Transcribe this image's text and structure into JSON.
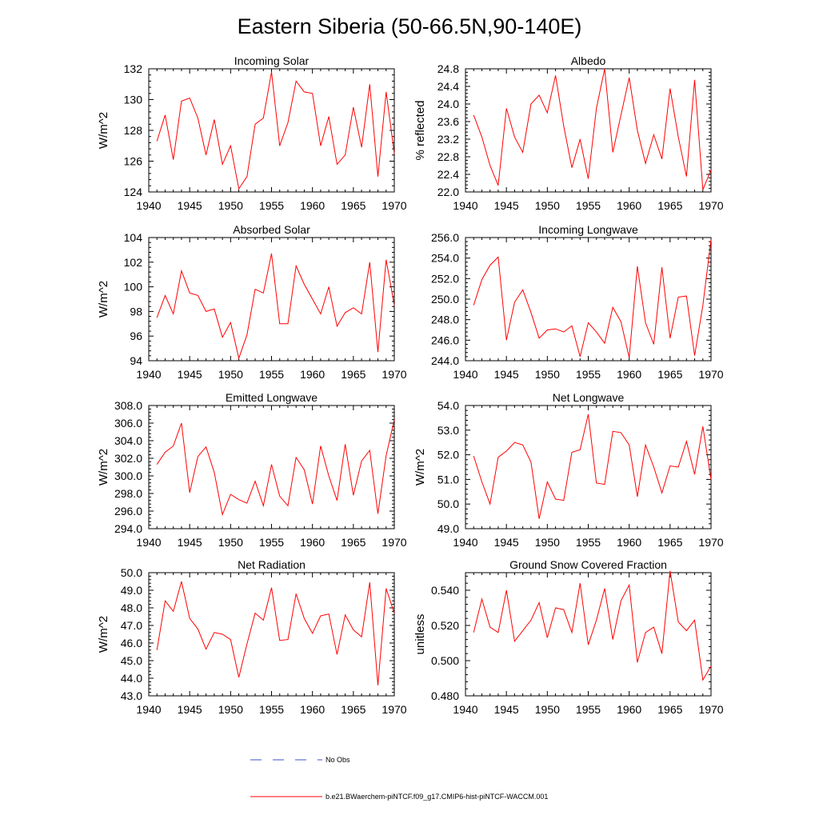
{
  "figure": {
    "title": "Eastern Siberia (50-66.5N,90-140E)"
  },
  "legend": {
    "obs_label": "No Obs",
    "model_label": "b.e21.BWaerchem-piNTCF.f09_g17.CMIP6-hist-piNTCF-WACCM.001",
    "obs_color": "#3a4fd0",
    "model_color": "#ff0000"
  },
  "chart_data": [
    {
      "type": "line",
      "title": "Incoming Solar",
      "ylabel": "W/m^2",
      "xlim": [
        1940,
        1970
      ],
      "ylim": [
        124,
        132
      ],
      "xticks": [
        1940,
        1945,
        1950,
        1955,
        1960,
        1965,
        1970
      ],
      "yticks": [
        124,
        126,
        128,
        130,
        132
      ],
      "ytick_decimals": 0,
      "grid": false,
      "x": [
        1941,
        1942,
        1943,
        1944,
        1945,
        1946,
        1947,
        1948,
        1949,
        1950,
        1951,
        1952,
        1953,
        1954,
        1955,
        1956,
        1957,
        1958,
        1959,
        1960,
        1961,
        1962,
        1963,
        1964,
        1965,
        1966,
        1967,
        1968,
        1969,
        1970
      ],
      "series": [
        {
          "color": "#ff0000",
          "values": [
            127.3,
            129.0,
            126.1,
            129.9,
            130.1,
            128.8,
            126.4,
            128.7,
            125.8,
            127.0,
            124.2,
            125.0,
            128.4,
            128.8,
            131.8,
            127.0,
            128.5,
            131.2,
            130.5,
            130.4,
            127.0,
            128.9,
            125.8,
            126.4,
            129.5,
            126.9,
            131.0,
            125.0,
            130.5,
            126.5
          ]
        }
      ]
    },
    {
      "type": "line",
      "title": "Albedo",
      "ylabel": "% reflected",
      "xlim": [
        1940,
        1970
      ],
      "ylim": [
        22.0,
        24.8
      ],
      "xticks": [
        1940,
        1945,
        1950,
        1955,
        1960,
        1965,
        1970
      ],
      "yticks": [
        22.0,
        22.4,
        22.8,
        23.2,
        23.6,
        24.0,
        24.4,
        24.8
      ],
      "ytick_decimals": 1,
      "grid": false,
      "x": [
        1941,
        1942,
        1943,
        1944,
        1945,
        1946,
        1947,
        1948,
        1949,
        1950,
        1951,
        1952,
        1953,
        1954,
        1955,
        1956,
        1957,
        1958,
        1959,
        1960,
        1961,
        1962,
        1963,
        1964,
        1965,
        1966,
        1967,
        1968,
        1969,
        1970
      ],
      "series": [
        {
          "color": "#ff0000",
          "values": [
            23.75,
            23.25,
            22.6,
            22.15,
            23.9,
            23.25,
            22.9,
            24.0,
            24.2,
            23.8,
            24.65,
            23.5,
            22.55,
            23.2,
            22.3,
            23.9,
            24.8,
            22.9,
            23.75,
            24.6,
            23.4,
            22.65,
            23.3,
            22.75,
            24.35,
            23.25,
            22.35,
            24.55,
            22.05,
            22.5
          ]
        }
      ]
    },
    {
      "type": "line",
      "title": "Absorbed Solar",
      "ylabel": "W/m^2",
      "xlim": [
        1940,
        1970
      ],
      "ylim": [
        94,
        104
      ],
      "xticks": [
        1940,
        1945,
        1950,
        1955,
        1960,
        1965,
        1970
      ],
      "yticks": [
        94,
        96,
        98,
        100,
        102,
        104
      ],
      "ytick_decimals": 0,
      "grid": false,
      "x": [
        1941,
        1942,
        1943,
        1944,
        1945,
        1946,
        1947,
        1948,
        1949,
        1950,
        1951,
        1952,
        1953,
        1954,
        1955,
        1956,
        1957,
        1958,
        1959,
        1960,
        1961,
        1962,
        1963,
        1964,
        1965,
        1966,
        1967,
        1968,
        1969,
        1970
      ],
      "series": [
        {
          "color": "#ff0000",
          "values": [
            97.5,
            99.3,
            97.8,
            101.3,
            99.5,
            99.3,
            98.0,
            98.2,
            95.9,
            97.1,
            94.2,
            96.1,
            99.8,
            99.5,
            102.7,
            97.0,
            97.0,
            101.7,
            100.2,
            99.0,
            97.8,
            100.0,
            96.8,
            97.9,
            98.3,
            97.8,
            102.0,
            94.7,
            102.2,
            98.5
          ]
        }
      ]
    },
    {
      "type": "line",
      "title": "Incoming Longwave",
      "ylabel": "",
      "xlim": [
        1940,
        1970
      ],
      "ylim": [
        244.0,
        256.0
      ],
      "xticks": [
        1940,
        1945,
        1950,
        1955,
        1960,
        1965,
        1970
      ],
      "yticks": [
        244.0,
        246.0,
        248.0,
        250.0,
        252.0,
        254.0,
        256.0
      ],
      "ytick_decimals": 1,
      "grid": false,
      "x": [
        1941,
        1942,
        1943,
        1944,
        1945,
        1946,
        1947,
        1948,
        1949,
        1950,
        1951,
        1952,
        1953,
        1954,
        1955,
        1956,
        1957,
        1958,
        1959,
        1960,
        1961,
        1962,
        1963,
        1964,
        1965,
        1966,
        1967,
        1968,
        1969,
        1970
      ],
      "series": [
        {
          "color": "#ff0000",
          "values": [
            249.4,
            251.9,
            253.3,
            254.1,
            246.0,
            249.7,
            250.9,
            248.7,
            246.2,
            247.0,
            247.1,
            246.8,
            247.4,
            244.4,
            247.7,
            246.8,
            245.7,
            249.2,
            247.8,
            244.3,
            253.2,
            247.7,
            245.6,
            253.1,
            246.2,
            250.2,
            250.3,
            244.5,
            249.4,
            255.8
          ]
        }
      ]
    },
    {
      "type": "line",
      "title": "Emitted Longwave",
      "ylabel": "W/m^2",
      "xlim": [
        1940,
        1970
      ],
      "ylim": [
        294.0,
        308.0
      ],
      "xticks": [
        1940,
        1945,
        1950,
        1955,
        1960,
        1965,
        1970
      ],
      "yticks": [
        294.0,
        296.0,
        298.0,
        300.0,
        302.0,
        304.0,
        306.0,
        308.0
      ],
      "ytick_decimals": 1,
      "grid": false,
      "x": [
        1941,
        1942,
        1943,
        1944,
        1945,
        1946,
        1947,
        1948,
        1949,
        1950,
        1951,
        1952,
        1953,
        1954,
        1955,
        1956,
        1957,
        1958,
        1959,
        1960,
        1961,
        1962,
        1963,
        1964,
        1965,
        1966,
        1967,
        1968,
        1969,
        1970
      ],
      "series": [
        {
          "color": "#ff0000",
          "values": [
            301.3,
            302.7,
            303.4,
            306.0,
            298.1,
            302.2,
            303.3,
            300.4,
            295.6,
            297.9,
            297.3,
            296.9,
            299.4,
            296.6,
            301.3,
            297.7,
            296.6,
            302.1,
            300.7,
            296.8,
            303.4,
            300.0,
            297.2,
            303.6,
            297.8,
            301.7,
            302.9,
            295.7,
            302.3,
            306.4
          ]
        }
      ]
    },
    {
      "type": "line",
      "title": "Net Longwave",
      "ylabel": "W/m^2",
      "xlim": [
        1940,
        1970
      ],
      "ylim": [
        49.0,
        54.0
      ],
      "xticks": [
        1940,
        1945,
        1950,
        1955,
        1960,
        1965,
        1970
      ],
      "yticks": [
        49.0,
        50.0,
        51.0,
        52.0,
        53.0,
        54.0
      ],
      "ytick_decimals": 1,
      "grid": false,
      "x": [
        1941,
        1942,
        1943,
        1944,
        1945,
        1946,
        1947,
        1948,
        1949,
        1950,
        1951,
        1952,
        1953,
        1954,
        1955,
        1956,
        1957,
        1958,
        1959,
        1960,
        1961,
        1962,
        1963,
        1964,
        1965,
        1966,
        1967,
        1968,
        1969,
        1970
      ],
      "series": [
        {
          "color": "#ff0000",
          "values": [
            51.95,
            50.9,
            50.0,
            51.9,
            52.15,
            52.5,
            52.4,
            51.7,
            49.4,
            50.9,
            50.2,
            50.15,
            52.1,
            52.2,
            53.65,
            50.85,
            50.8,
            52.95,
            52.9,
            52.4,
            50.3,
            52.4,
            51.5,
            50.45,
            51.55,
            51.5,
            52.55,
            51.2,
            53.15,
            51.0
          ]
        }
      ]
    },
    {
      "type": "line",
      "title": "Net Radiation",
      "ylabel": "W/m^2",
      "xlim": [
        1940,
        1970
      ],
      "ylim": [
        43.0,
        50.0
      ],
      "xticks": [
        1940,
        1945,
        1950,
        1955,
        1960,
        1965,
        1970
      ],
      "yticks": [
        43.0,
        44.0,
        45.0,
        46.0,
        47.0,
        48.0,
        49.0,
        50.0
      ],
      "ytick_decimals": 1,
      "grid": false,
      "x": [
        1941,
        1942,
        1943,
        1944,
        1945,
        1946,
        1947,
        1948,
        1949,
        1950,
        1951,
        1952,
        1953,
        1954,
        1955,
        1956,
        1957,
        1958,
        1959,
        1960,
        1961,
        1962,
        1963,
        1964,
        1965,
        1966,
        1967,
        1968,
        1969,
        1970
      ],
      "series": [
        {
          "color": "#ff0000",
          "values": [
            45.6,
            48.4,
            47.8,
            49.5,
            47.4,
            46.8,
            45.65,
            46.6,
            46.5,
            46.2,
            44.05,
            45.95,
            47.7,
            47.3,
            49.15,
            46.15,
            46.2,
            48.8,
            47.4,
            46.55,
            47.55,
            47.65,
            45.35,
            47.6,
            46.75,
            46.35,
            49.45,
            43.6,
            49.1,
            47.7
          ]
        }
      ]
    },
    {
      "type": "line",
      "title": "Ground Snow Covered Fraction",
      "ylabel": "unitless",
      "xlim": [
        1940,
        1970
      ],
      "ylim": [
        0.48,
        0.55
      ],
      "xticks": [
        1940,
        1945,
        1950,
        1955,
        1960,
        1965,
        1970
      ],
      "yticks": [
        0.48,
        0.5,
        0.52,
        0.54
      ],
      "ytick_decimals": 3,
      "grid": false,
      "x": [
        1941,
        1942,
        1943,
        1944,
        1945,
        1946,
        1947,
        1948,
        1949,
        1950,
        1951,
        1952,
        1953,
        1954,
        1955,
        1956,
        1957,
        1958,
        1959,
        1960,
        1961,
        1962,
        1963,
        1964,
        1965,
        1966,
        1967,
        1968,
        1969,
        1970
      ],
      "series": [
        {
          "color": "#ff0000",
          "values": [
            0.516,
            0.535,
            0.519,
            0.516,
            0.54,
            0.511,
            0.517,
            0.523,
            0.533,
            0.513,
            0.53,
            0.529,
            0.516,
            0.544,
            0.509,
            0.523,
            0.541,
            0.512,
            0.534,
            0.543,
            0.499,
            0.516,
            0.519,
            0.504,
            0.551,
            0.522,
            0.517,
            0.523,
            0.489,
            0.497
          ]
        }
      ]
    }
  ]
}
